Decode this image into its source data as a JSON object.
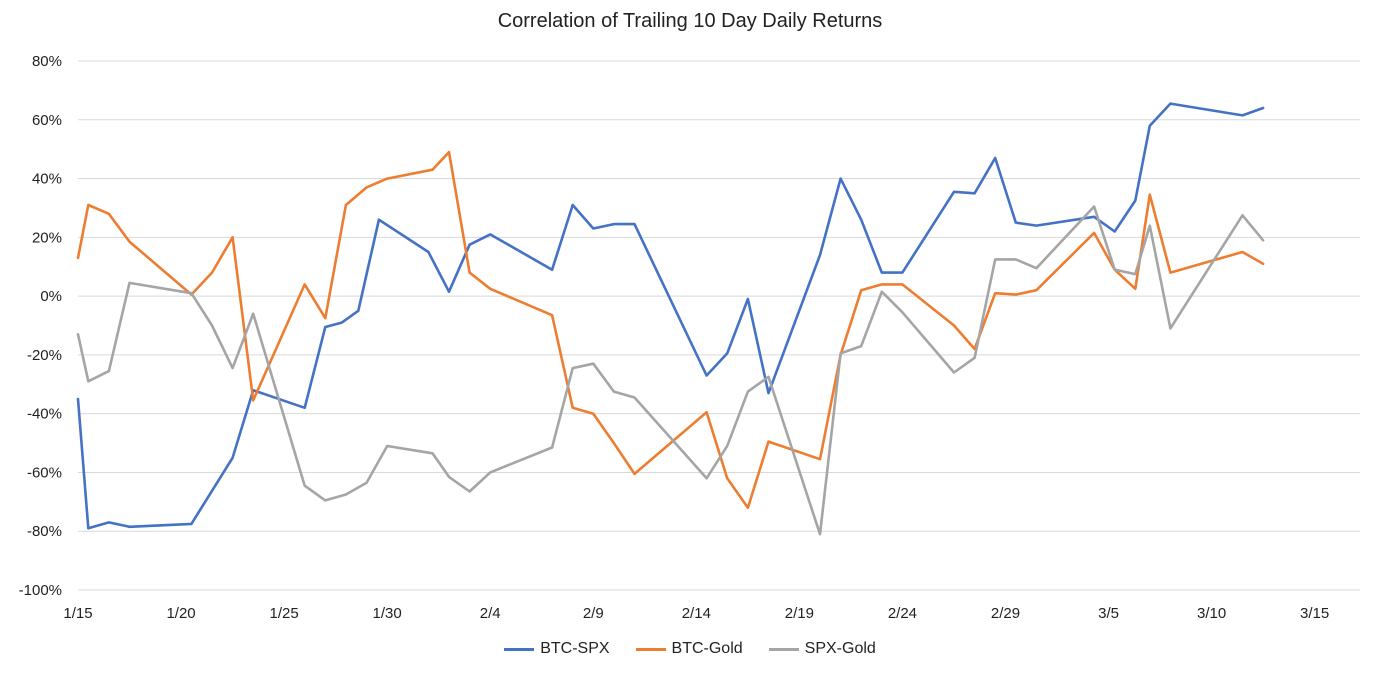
{
  "chart_data": {
    "type": "line",
    "title": "Correlation of Trailing 10 Day Daily Returns",
    "ylim": [
      -100,
      80
    ],
    "y_ticks": [
      80,
      60,
      40,
      20,
      0,
      -20,
      -40,
      -60,
      -80,
      -100
    ],
    "y_tick_labels": [
      "80%",
      "60%",
      "40%",
      "20%",
      "0%",
      "-20%",
      "-40%",
      "-60%",
      "-80%",
      "-100%"
    ],
    "x_tick_labels": [
      "1/15",
      "1/20",
      "1/25",
      "1/30",
      "2/4",
      "2/9",
      "2/14",
      "2/19",
      "2/24",
      "2/29",
      "3/5",
      "3/10",
      "3/15"
    ],
    "x_ticks_day": [
      0,
      5,
      10,
      15,
      20,
      25,
      30,
      35,
      40,
      45,
      50,
      55,
      60
    ],
    "x_domain_day": [
      0,
      62.2
    ],
    "grid": true,
    "legend_position": "bottom",
    "series": [
      {
        "name": "BTC-SPX",
        "color": "#4472c4",
        "points": [
          [
            0,
            -35
          ],
          [
            0.5,
            -79
          ],
          [
            1.5,
            -77
          ],
          [
            2.5,
            -78.5
          ],
          [
            5.5,
            -77.5
          ],
          [
            7.5,
            -55
          ],
          [
            8.5,
            -32
          ],
          [
            11,
            -38
          ],
          [
            12,
            -10.5
          ],
          [
            12.8,
            -9
          ],
          [
            13.6,
            -5
          ],
          [
            14.6,
            26
          ],
          [
            17,
            15
          ],
          [
            18,
            1.5
          ],
          [
            19,
            17.5
          ],
          [
            20,
            21
          ],
          [
            23,
            9
          ],
          [
            24,
            31
          ],
          [
            25,
            23
          ],
          [
            26,
            24.5
          ],
          [
            27,
            24.5
          ],
          [
            30.5,
            -27
          ],
          [
            31.5,
            -19.5
          ],
          [
            32.5,
            -1
          ],
          [
            33.5,
            -33
          ],
          [
            36,
            14
          ],
          [
            37,
            40
          ],
          [
            38,
            26
          ],
          [
            39,
            8
          ],
          [
            40,
            8
          ],
          [
            42.5,
            35.5
          ],
          [
            43.5,
            35
          ],
          [
            44.5,
            47
          ],
          [
            45.5,
            25
          ],
          [
            46.5,
            24
          ],
          [
            49.3,
            27
          ],
          [
            50.3,
            22
          ],
          [
            51.3,
            32.5
          ],
          [
            52,
            58
          ],
          [
            53,
            65.5
          ],
          [
            56.5,
            61.5
          ],
          [
            57.5,
            64
          ]
        ]
      },
      {
        "name": "BTC-Gold",
        "color": "#ed7d31",
        "points": [
          [
            0,
            13
          ],
          [
            0.5,
            31
          ],
          [
            1.5,
            28
          ],
          [
            2.5,
            18.5
          ],
          [
            5.5,
            0.5
          ],
          [
            6.5,
            8
          ],
          [
            7.5,
            20
          ],
          [
            8.5,
            -35.5
          ],
          [
            11,
            4
          ],
          [
            12,
            -7.5
          ],
          [
            13,
            31
          ],
          [
            14,
            37
          ],
          [
            15,
            40
          ],
          [
            17.2,
            43
          ],
          [
            18,
            49
          ],
          [
            19,
            8
          ],
          [
            20,
            2.5
          ],
          [
            23,
            -6.5
          ],
          [
            24,
            -38
          ],
          [
            25,
            -40
          ],
          [
            26,
            -50
          ],
          [
            27,
            -60.5
          ],
          [
            30.5,
            -39.5
          ],
          [
            31.5,
            -62
          ],
          [
            32.5,
            -72
          ],
          [
            33.5,
            -49.5
          ],
          [
            36,
            -55.5
          ],
          [
            37,
            -20
          ],
          [
            38,
            2
          ],
          [
            39,
            4
          ],
          [
            40,
            4
          ],
          [
            42.5,
            -10
          ],
          [
            43.5,
            -18
          ],
          [
            44.5,
            1
          ],
          [
            45.5,
            0.5
          ],
          [
            46.5,
            2
          ],
          [
            49.3,
            21.5
          ],
          [
            50.3,
            9
          ],
          [
            51.3,
            2.5
          ],
          [
            52,
            34.5
          ],
          [
            53,
            8
          ],
          [
            56.5,
            15
          ],
          [
            57.5,
            11
          ]
        ]
      },
      {
        "name": "SPX-Gold",
        "color": "#a5a5a5",
        "points": [
          [
            0,
            -13
          ],
          [
            0.5,
            -29
          ],
          [
            1.5,
            -25.5
          ],
          [
            2.5,
            4.5
          ],
          [
            5.5,
            1
          ],
          [
            6.5,
            -10
          ],
          [
            7.5,
            -24.5
          ],
          [
            8.5,
            -6
          ],
          [
            11,
            -64.5
          ],
          [
            12,
            -69.5
          ],
          [
            13,
            -67.5
          ],
          [
            14,
            -63.5
          ],
          [
            15,
            -51
          ],
          [
            17.2,
            -53.5
          ],
          [
            18,
            -61.5
          ],
          [
            19,
            -66.5
          ],
          [
            20,
            -60
          ],
          [
            23,
            -51.5
          ],
          [
            24,
            -24.5
          ],
          [
            25,
            -23
          ],
          [
            26,
            -32.5
          ],
          [
            27,
            -34.5
          ],
          [
            30.5,
            -62
          ],
          [
            31.5,
            -51
          ],
          [
            32.5,
            -32.5
          ],
          [
            33.5,
            -27.5
          ],
          [
            36,
            -81
          ],
          [
            37,
            -19.5
          ],
          [
            38,
            -17
          ],
          [
            39,
            1.5
          ],
          [
            40,
            -5.5
          ],
          [
            42.5,
            -26
          ],
          [
            43.5,
            -21
          ],
          [
            44.5,
            12.5
          ],
          [
            45.5,
            12.5
          ],
          [
            46.5,
            9.5
          ],
          [
            49.3,
            30.5
          ],
          [
            50.3,
            9
          ],
          [
            51.3,
            7.5
          ],
          [
            52,
            24
          ],
          [
            53,
            -11
          ],
          [
            56.5,
            27.5
          ],
          [
            57.5,
            19
          ]
        ]
      }
    ]
  }
}
